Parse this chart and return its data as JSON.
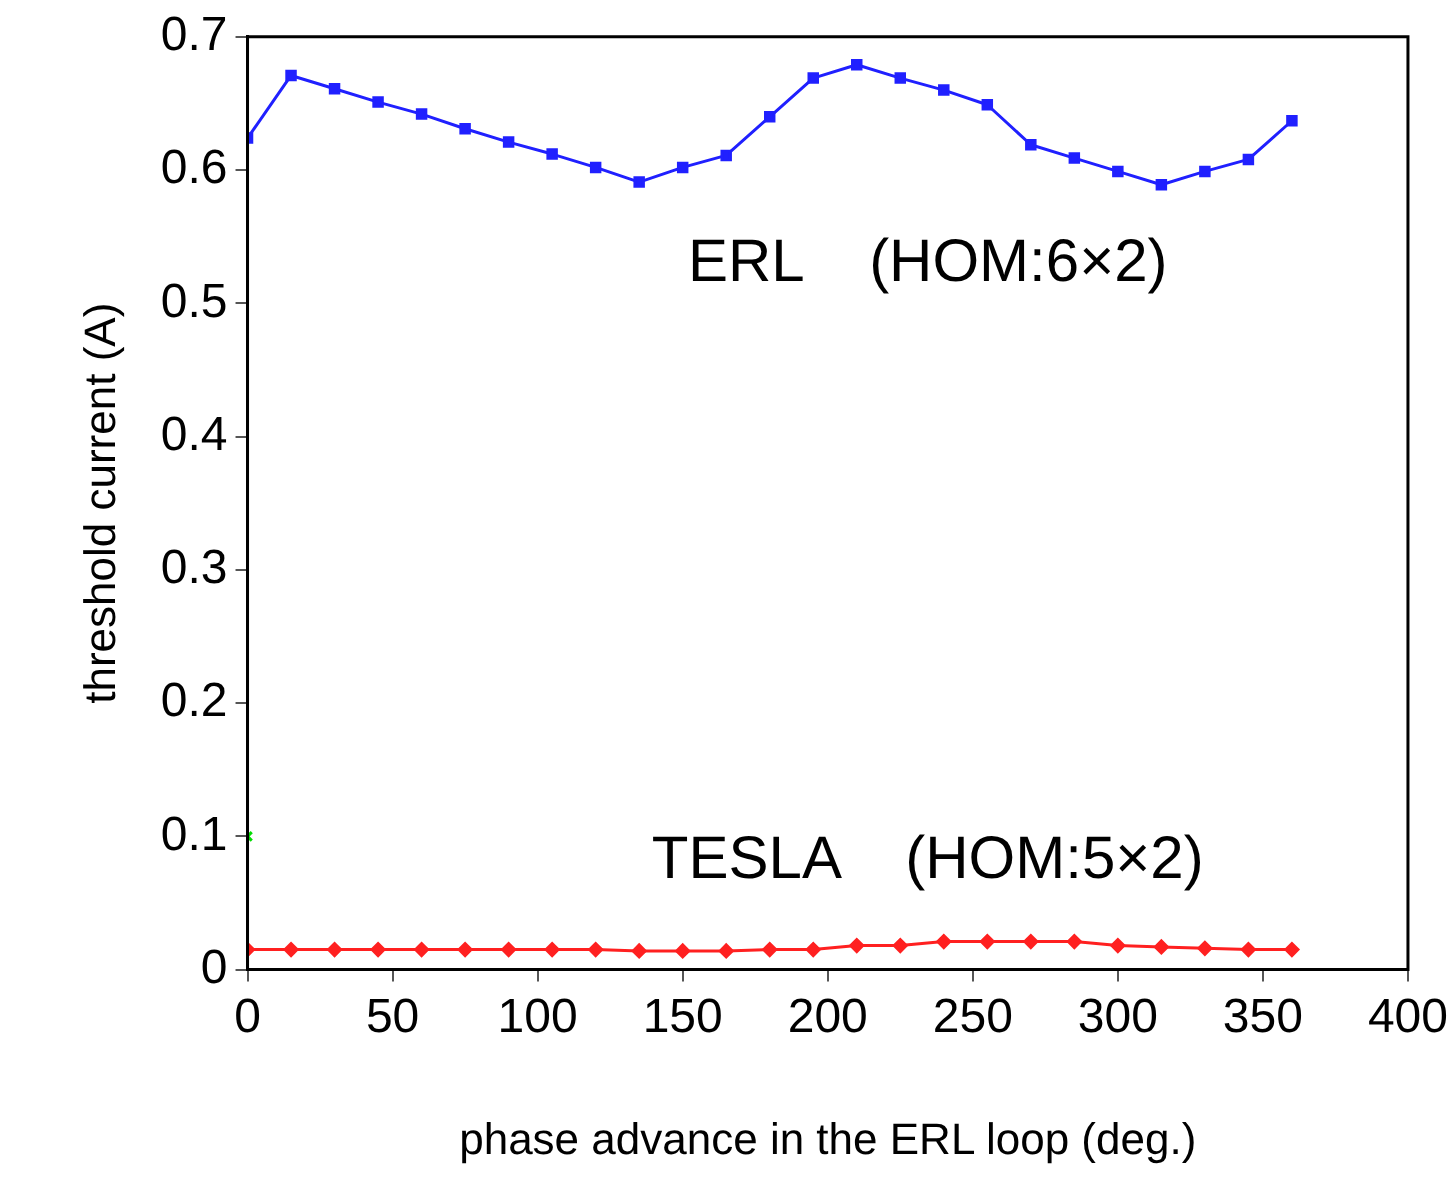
{
  "chart_data": {
    "type": "line",
    "xlabel": "phase advance in the ERL loop (deg.)",
    "ylabel": "threshold current (A)",
    "x": [
      0,
      15,
      30,
      45,
      60,
      75,
      90,
      105,
      120,
      135,
      150,
      165,
      180,
      195,
      210,
      225,
      240,
      255,
      270,
      285,
      300,
      315,
      330,
      345,
      360
    ],
    "xlim": [
      0,
      400
    ],
    "xticks": [
      0,
      50,
      100,
      150,
      200,
      250,
      300,
      350,
      400
    ],
    "ylim": [
      0,
      0.7
    ],
    "yticks": [
      0,
      0.1,
      0.2,
      0.3,
      0.4,
      0.5,
      0.6,
      0.7
    ],
    "grid": false,
    "legend": false,
    "series": [
      {
        "name": "ERL    (HOM:6×2)",
        "color": "#2020ff",
        "marker": "square",
        "values": [
          0.624,
          0.671,
          0.661,
          0.651,
          0.642,
          0.631,
          0.621,
          0.612,
          0.602,
          0.591,
          0.602,
          0.611,
          0.64,
          0.669,
          0.679,
          0.669,
          0.66,
          0.649,
          0.619,
          0.609,
          0.599,
          0.589,
          0.599,
          0.608,
          0.637
        ]
      },
      {
        "name": "TESLA    (HOM:5×2)",
        "color": "#ff2020",
        "marker": "diamond",
        "values": [
          0.015,
          0.015,
          0.015,
          0.015,
          0.015,
          0.015,
          0.015,
          0.015,
          0.015,
          0.014,
          0.014,
          0.014,
          0.015,
          0.015,
          0.018,
          0.018,
          0.021,
          0.021,
          0.021,
          0.021,
          0.018,
          0.017,
          0.016,
          0.015,
          0.015
        ]
      },
      {
        "type": "scatter",
        "color": "#00dd00",
        "marker": "cross",
        "x": [
          0
        ],
        "values": [
          0.1
        ]
      }
    ]
  }
}
